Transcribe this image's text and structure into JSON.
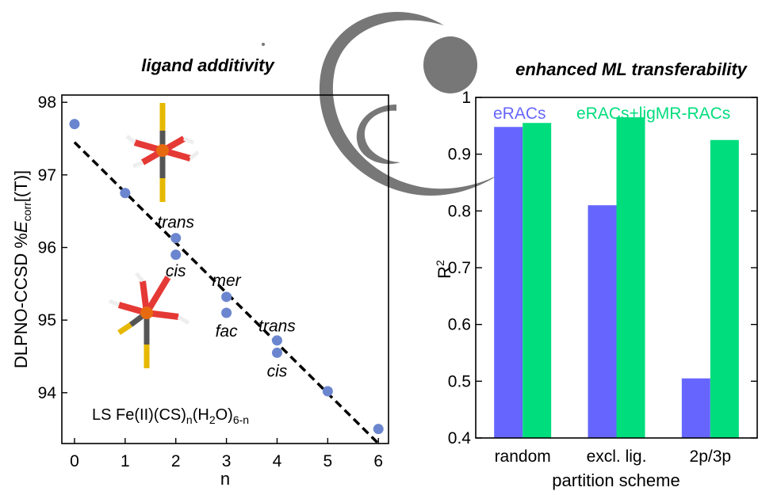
{
  "headings": {
    "left": "ligand additivity",
    "right": "enhanced ML transferability"
  },
  "colors": {
    "points": "#6b86cf",
    "fit_line": "#000000",
    "eRACs": "#6666ff",
    "eRACs_ligMR": "#00dd7d",
    "logo": "#777777"
  },
  "chart_data": [
    {
      "type": "scatter",
      "title": "",
      "xlabel": "n",
      "ylabel_prefix": "DLPNO-CCSD %",
      "ylabel_var": "E",
      "ylabel_sub": "corr",
      "ylabel_suffix": "[(T)]",
      "xlim": [
        -0.25,
        6.2
      ],
      "ylim": [
        93.3,
        98.1
      ],
      "xticks": [
        0,
        1,
        2,
        3,
        4,
        5,
        6
      ],
      "yticks": [
        94,
        95,
        96,
        97,
        98
      ],
      "grid": false,
      "points": [
        {
          "x": 0,
          "y": 97.7
        },
        {
          "x": 1,
          "y": 96.75
        },
        {
          "x": 2,
          "y": 96.13
        },
        {
          "x": 2,
          "y": 95.9
        },
        {
          "x": 3,
          "y": 95.32
        },
        {
          "x": 3,
          "y": 95.1
        },
        {
          "x": 4,
          "y": 94.72
        },
        {
          "x": 4,
          "y": 94.55
        },
        {
          "x": 5,
          "y": 94.02
        },
        {
          "x": 6,
          "y": 93.5
        }
      ],
      "fit_line": {
        "style": "dashed",
        "x": [
          0,
          6
        ],
        "y": [
          97.45,
          93.3
        ]
      },
      "annotations": [
        {
          "text": "trans",
          "x": 2,
          "y": 96.35
        },
        {
          "text": "cis",
          "x": 2,
          "y": 95.68
        },
        {
          "text": "mer",
          "x": 3,
          "y": 95.55
        },
        {
          "text": "fac",
          "x": 3,
          "y": 94.85
        },
        {
          "text": "trans",
          "x": 4,
          "y": 94.92
        },
        {
          "text": "cis",
          "x": 4,
          "y": 94.3
        }
      ],
      "system_label": {
        "prefix": "LS Fe(II)(CS)",
        "sub1": "n",
        "mid": "(H",
        "sub2": "2",
        "mid2": "O)",
        "sub3": "6-n"
      }
    },
    {
      "type": "bar",
      "title": "",
      "xlabel": "partition scheme",
      "ylabel": "R",
      "ylabel_sup": "2",
      "ylim": [
        0.4,
        1.0
      ],
      "yticks": [
        0.4,
        0.5,
        0.6,
        0.7,
        0.8,
        0.9,
        1.0
      ],
      "ytick_labels": [
        "0.4",
        "0.5",
        "0.6",
        "0.7",
        "0.8",
        "0.9",
        "1"
      ],
      "categories": [
        "random",
        "excl. lig.",
        "2p/3p"
      ],
      "series": [
        {
          "name": "eRACs",
          "values": [
            0.948,
            0.81,
            0.505
          ]
        },
        {
          "name": "eRACs+ligMR-RACs",
          "values": [
            0.955,
            0.965,
            0.925
          ]
        }
      ],
      "legend": "top",
      "grid": false
    }
  ]
}
